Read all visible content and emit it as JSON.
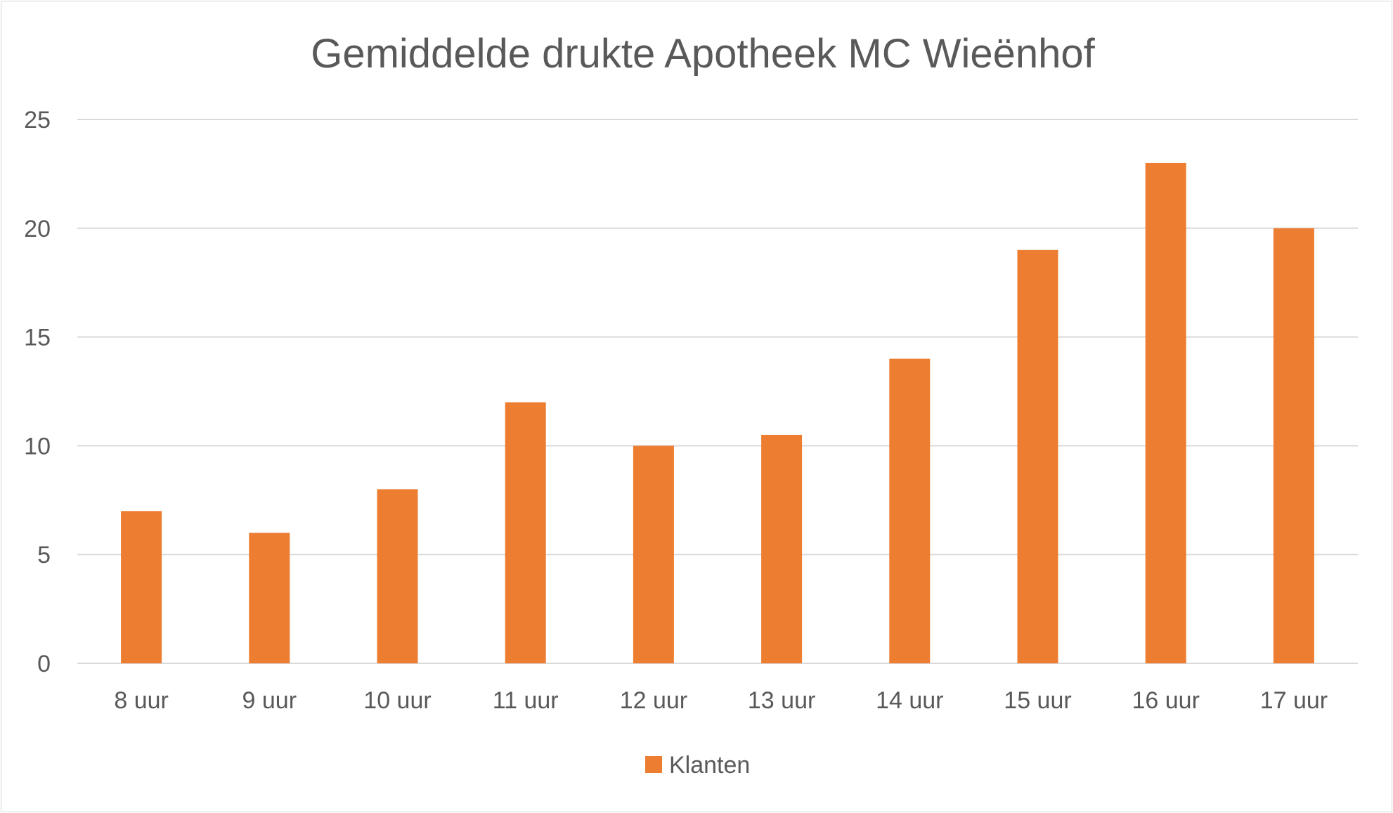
{
  "chart_data": {
    "type": "bar",
    "title": "Gemiddelde drukte Apotheek MC Wieënhof",
    "categories": [
      "8 uur",
      "9 uur",
      "10 uur",
      "11 uur",
      "12 uur",
      "13 uur",
      "14 uur",
      "15 uur",
      "16 uur",
      "17 uur"
    ],
    "series": [
      {
        "name": "Klanten",
        "values": [
          7,
          6,
          8,
          12,
          10,
          10.5,
          14,
          19,
          23,
          20
        ],
        "color": "#ed7d31"
      }
    ],
    "ylim": [
      0,
      25
    ],
    "yticks": [
      "0",
      "5",
      "10",
      "15",
      "20",
      "25"
    ],
    "grid": true,
    "legend": "bottom",
    "gridline_color": "#d9d9d9",
    "text_color": "#595959"
  }
}
